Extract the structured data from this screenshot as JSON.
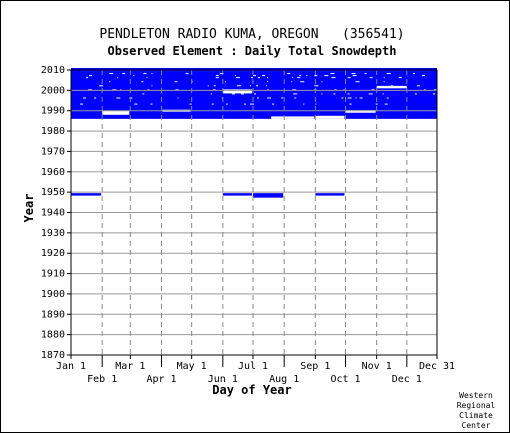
{
  "chart_data": {
    "type": "heatmap",
    "title": "PENDLETON RADIO KUMA, OREGON   (356541)",
    "subtitle": "Observed Element : Daily Total Snowdepth",
    "xlabel": "Day of Year",
    "ylabel": "Year",
    "ylim": [
      1870,
      2010
    ],
    "xlim": [
      1,
      365
    ],
    "y_ticks": [
      1870,
      1880,
      1890,
      1900,
      1910,
      1920,
      1930,
      1940,
      1950,
      1960,
      1970,
      1980,
      1990,
      2000,
      2010
    ],
    "x_ticks_top_row": [
      {
        "label": "Jan 1",
        "day": 1
      },
      {
        "label": "Mar 1",
        "day": 60
      },
      {
        "label": "May 1",
        "day": 121
      },
      {
        "label": "Jul 1",
        "day": 182
      },
      {
        "label": "Sep 1",
        "day": 244
      },
      {
        "label": "Nov 1",
        "day": 305
      },
      {
        "label": "Dec 31",
        "day": 365
      }
    ],
    "x_ticks_bottom_row": [
      {
        "label": "Feb 1",
        "day": 32
      },
      {
        "label": "Apr 1",
        "day": 91
      },
      {
        "label": "Jun 1",
        "day": 152
      },
      {
        "label": "Aug 1",
        "day": 213
      },
      {
        "label": "Oct 1",
        "day": 274
      },
      {
        "label": "Dec 1",
        "day": 335
      }
    ],
    "grid": true,
    "series_color": "#0000ff",
    "coverage_blocks": [
      {
        "day_start": 1,
        "day_end": 365,
        "year_start": 1986,
        "year_end": 2011
      },
      {
        "day_start": 1,
        "day_end": 31,
        "year_start": 1948.3,
        "year_end": 1949.5
      },
      {
        "day_start": 152,
        "day_end": 181,
        "year_start": 1948.3,
        "year_end": 1949.5
      },
      {
        "day_start": 182,
        "day_end": 212,
        "year_start": 1947.3,
        "year_end": 1949.5
      },
      {
        "day_start": 244,
        "day_end": 273,
        "year_start": 1948.3,
        "year_end": 1949.5
      }
    ],
    "gap_blocks": [
      {
        "day_start": 32,
        "day_end": 59,
        "year_start": 1988,
        "year_end": 1990
      },
      {
        "day_start": 92,
        "day_end": 120,
        "year_start": 1989.5,
        "year_end": 1990.5
      },
      {
        "day_start": 152,
        "day_end": 181,
        "year_start": 1998.5,
        "year_end": 2000.5
      },
      {
        "day_start": 244,
        "day_end": 273,
        "year_start": 1986,
        "year_end": 1987.5
      },
      {
        "day_start": 274,
        "day_end": 304,
        "year_start": 1989,
        "year_end": 1990.3
      },
      {
        "day_start": 305,
        "day_end": 335,
        "year_start": 2001,
        "year_end": 2002.2
      },
      {
        "day_start": 200,
        "day_end": 243,
        "year_start": 1986,
        "year_end": 1987.2
      }
    ]
  },
  "credit_lines": [
    "Western",
    "Regional",
    "Climate",
    "Center"
  ]
}
